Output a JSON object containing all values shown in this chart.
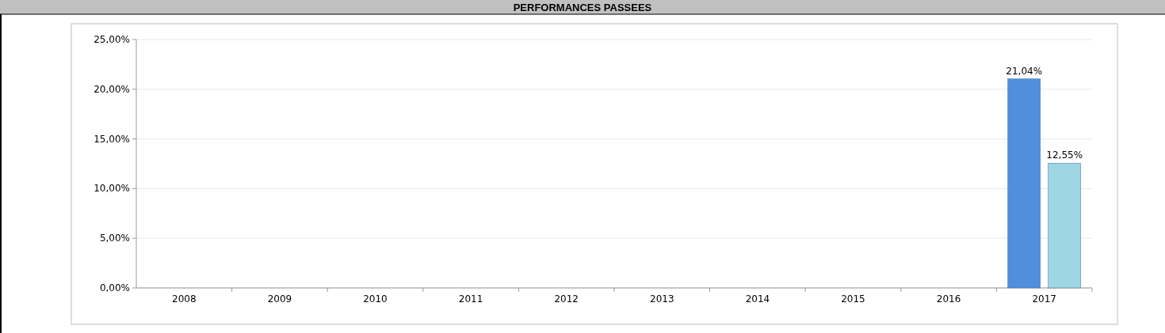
{
  "chart_data": {
    "type": "bar",
    "title": "PERFORMANCES PASSEES",
    "categories": [
      "2008",
      "2009",
      "2010",
      "2011",
      "2012",
      "2013",
      "2014",
      "2015",
      "2016",
      "2017"
    ],
    "series": [
      {
        "color": "#4f8fdc",
        "values": [
          null,
          null,
          null,
          null,
          null,
          null,
          null,
          null,
          null,
          21.04
        ],
        "value_labels": [
          null,
          null,
          null,
          null,
          null,
          null,
          null,
          null,
          null,
          "21,04%"
        ]
      },
      {
        "color": "#9fd6e4",
        "values": [
          null,
          null,
          null,
          null,
          null,
          null,
          null,
          null,
          null,
          12.55
        ],
        "value_labels": [
          null,
          null,
          null,
          null,
          null,
          null,
          null,
          null,
          null,
          "12,55%"
        ]
      }
    ],
    "ylim": [
      0,
      25
    ],
    "yticks": [
      {
        "value": 0,
        "label": "0,00%"
      },
      {
        "value": 5,
        "label": "5,00%"
      },
      {
        "value": 10,
        "label": "10,00%"
      },
      {
        "value": 15,
        "label": "15,00%"
      },
      {
        "value": 20,
        "label": "20,00%"
      },
      {
        "value": 25,
        "label": "25,00%"
      }
    ],
    "grid": "y"
  }
}
